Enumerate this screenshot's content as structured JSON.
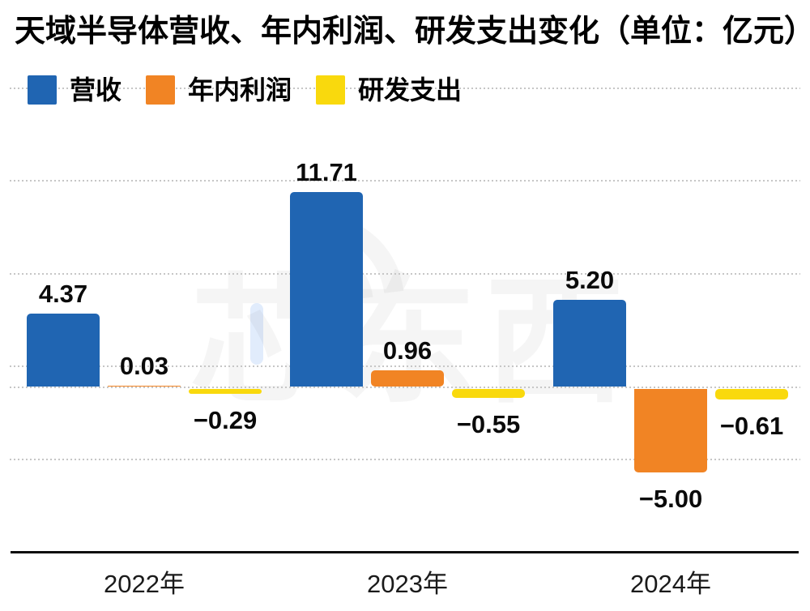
{
  "watermark": {
    "text": "芯东西"
  },
  "chart_data": {
    "type": "bar",
    "title": "天域半导体营收、年内利润、研发支出变化（单位：亿元）",
    "unit": "亿元",
    "categories": [
      "2022年",
      "2023年",
      "2024年"
    ],
    "series": [
      {
        "key": "revenue",
        "name": "营收",
        "color": "#2065b2",
        "values": [
          4.37,
          11.71,
          5.2
        ],
        "labels": [
          "4.37",
          "11.71",
          "5.20"
        ]
      },
      {
        "key": "profit",
        "name": "年内利润",
        "color": "#f18424",
        "values": [
          0.03,
          0.96,
          -5.0
        ],
        "labels": [
          "0.03",
          "0.96",
          "−5.00"
        ]
      },
      {
        "key": "rnd",
        "name": "研发支出",
        "color": "#f9d90d",
        "values": [
          -0.29,
          -0.55,
          -0.61
        ],
        "labels": [
          "−0.29",
          "−0.55",
          "−0.61"
        ]
      }
    ],
    "xlabel": "",
    "ylabel": "",
    "ylim": [
      -10,
      18
    ],
    "baseline": 0,
    "grid": true,
    "value_labels": true,
    "legend_position": "top-left"
  }
}
